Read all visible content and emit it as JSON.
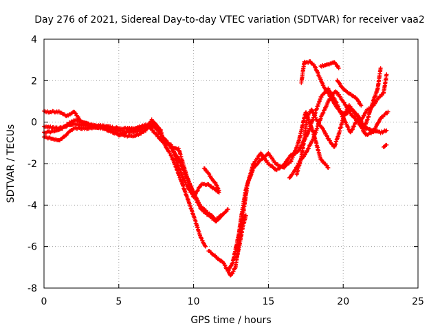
{
  "chart_data": {
    "type": "scatter",
    "title": "Day 276 of 2021, Sidereal Day-to-day VTEC variation (SDTVAR) for receiver vaa2",
    "xlabel": "GPS time / hours",
    "ylabel": "SDTVAR / TECUs",
    "xlim": [
      0,
      25
    ],
    "ylim": [
      -8,
      4
    ],
    "xticks": [
      "0",
      "5",
      "10",
      "15",
      "20",
      "25"
    ],
    "yticks": [
      "-8",
      "-6",
      "-4",
      "-2",
      "0",
      "2",
      "4"
    ],
    "grid": true,
    "marker": "+",
    "marker_color": "#ff0000",
    "series": [
      {
        "points": [
          [
            0.0,
            0.5
          ],
          [
            1.0,
            0.5
          ],
          [
            1.5,
            0.3
          ],
          [
            2.0,
            0.5
          ],
          [
            2.5,
            0.0
          ],
          [
            3.0,
            -0.1
          ],
          [
            4.0,
            -0.2
          ],
          [
            5.0,
            -0.4
          ],
          [
            6.0,
            -0.5
          ],
          [
            6.8,
            -0.3
          ],
          [
            7.3,
            -0.1
          ],
          [
            7.8,
            -0.6
          ],
          [
            8.3,
            -1.0
          ],
          [
            9.0,
            -1.8
          ],
          [
            9.5,
            -2.6
          ],
          [
            10.0,
            -3.4
          ],
          [
            10.5,
            -4.1
          ],
          [
            11.0,
            -4.4
          ],
          [
            11.5,
            -4.7
          ],
          [
            11.8,
            -4.5
          ]
        ]
      },
      {
        "points": [
          [
            0.0,
            -0.5
          ],
          [
            1.0,
            -0.4
          ],
          [
            2.0,
            0.1
          ],
          [
            3.0,
            -0.1
          ],
          [
            4.0,
            -0.3
          ],
          [
            5.0,
            -0.6
          ],
          [
            6.0,
            -0.7
          ],
          [
            6.8,
            -0.4
          ],
          [
            7.2,
            0.1
          ],
          [
            7.6,
            -0.2
          ],
          [
            8.0,
            -0.8
          ],
          [
            8.5,
            -1.2
          ],
          [
            9.0,
            -1.3
          ],
          [
            9.5,
            -2.5
          ],
          [
            10.0,
            -3.5
          ],
          [
            10.5,
            -4.2
          ],
          [
            11.0,
            -4.5
          ],
          [
            11.5,
            -4.8
          ],
          [
            12.0,
            -4.4
          ],
          [
            12.3,
            -4.2
          ]
        ]
      },
      {
        "points": [
          [
            0.0,
            -0.7
          ],
          [
            1.0,
            -0.9
          ],
          [
            1.5,
            -0.6
          ],
          [
            2.0,
            -0.3
          ],
          [
            3.0,
            -0.3
          ],
          [
            4.0,
            -0.2
          ],
          [
            5.0,
            -0.3
          ],
          [
            6.0,
            -0.3
          ],
          [
            7.0,
            -0.1
          ],
          [
            7.8,
            -0.4
          ],
          [
            8.0,
            -1.0
          ],
          [
            8.5,
            -1.6
          ],
          [
            9.0,
            -2.5
          ],
          [
            9.5,
            -3.5
          ],
          [
            10.0,
            -4.5
          ],
          [
            10.5,
            -5.6
          ],
          [
            10.8,
            -6.0
          ]
        ]
      },
      {
        "points": [
          [
            0.0,
            -0.2
          ],
          [
            1.0,
            -0.3
          ],
          [
            2.0,
            -0.1
          ],
          [
            3.0,
            -0.2
          ],
          [
            4.0,
            -0.3
          ],
          [
            5.0,
            -0.6
          ],
          [
            6.0,
            -0.4
          ],
          [
            7.0,
            -0.2
          ],
          [
            7.5,
            -0.6
          ],
          [
            8.0,
            -1.0
          ],
          [
            8.5,
            -1.1
          ],
          [
            9.0,
            -2.2
          ],
          [
            9.5,
            -3.0
          ],
          [
            10.0,
            -3.6
          ],
          [
            10.5,
            -3.0
          ],
          [
            11.0,
            -3.0
          ],
          [
            11.5,
            -3.3
          ],
          [
            11.7,
            -3.4
          ]
        ]
      },
      {
        "points": [
          [
            10.7,
            -2.2
          ],
          [
            11.0,
            -2.5
          ],
          [
            11.5,
            -3.0
          ],
          [
            11.7,
            -3.3
          ]
        ]
      },
      {
        "points": [
          [
            11.0,
            -6.2
          ],
          [
            11.5,
            -6.5
          ],
          [
            12.0,
            -6.8
          ],
          [
            12.5,
            -7.4
          ],
          [
            12.8,
            -7.0
          ],
          [
            13.0,
            -6.0
          ],
          [
            13.3,
            -4.5
          ],
          [
            13.6,
            -3.0
          ],
          [
            14.0,
            -2.2
          ],
          [
            14.5,
            -1.8
          ],
          [
            15.0,
            -1.5
          ],
          [
            15.5,
            -2.0
          ],
          [
            16.0,
            -2.2
          ],
          [
            16.5,
            -1.9
          ],
          [
            17.0,
            -1.0
          ],
          [
            17.5,
            0.5
          ],
          [
            18.0,
            -0.5
          ],
          [
            18.5,
            -1.8
          ],
          [
            19.0,
            -2.2
          ]
        ]
      },
      {
        "points": [
          [
            12.3,
            -7.2
          ],
          [
            12.6,
            -6.8
          ],
          [
            13.0,
            -5.5
          ],
          [
            13.2,
            -4.5
          ],
          [
            13.5,
            -3.2
          ],
          [
            13.8,
            -2.5
          ],
          [
            14.0,
            -2.0
          ],
          [
            14.5,
            -1.5
          ],
          [
            15.0,
            -2.0
          ],
          [
            15.5,
            -2.3
          ],
          [
            16.0,
            -2.1
          ],
          [
            16.5,
            -1.6
          ],
          [
            17.0,
            -1.4
          ],
          [
            17.3,
            -1.0
          ],
          [
            17.6,
            -0.6
          ],
          [
            18.0,
            0.2
          ],
          [
            18.5,
            1.2
          ],
          [
            19.0,
            1.6
          ],
          [
            19.5,
            1.0
          ],
          [
            20.0,
            0.2
          ],
          [
            20.5,
            -0.5
          ],
          [
            21.0,
            0.2
          ],
          [
            21.5,
            -0.3
          ],
          [
            22.0,
            -0.4
          ],
          [
            22.5,
            -0.5
          ],
          [
            22.9,
            -0.4
          ]
        ]
      },
      {
        "points": [
          [
            12.9,
            -6.5
          ],
          [
            13.1,
            -5.8
          ],
          [
            13.3,
            -5.0
          ],
          [
            13.5,
            -4.5
          ]
        ]
      },
      {
        "points": [
          [
            16.4,
            -2.7
          ],
          [
            16.8,
            -2.3
          ],
          [
            17.0,
            -2.0
          ],
          [
            17.5,
            -1.5
          ],
          [
            18.0,
            -0.8
          ],
          [
            18.5,
            0.2
          ],
          [
            19.0,
            1.0
          ],
          [
            19.5,
            1.5
          ],
          [
            20.0,
            1.0
          ],
          [
            20.5,
            0.4
          ],
          [
            21.0,
            0.0
          ],
          [
            21.5,
            -0.6
          ],
          [
            22.0,
            -0.5
          ],
          [
            22.5,
            0.2
          ],
          [
            23.0,
            0.5
          ]
        ]
      },
      {
        "points": [
          [
            16.9,
            -2.5
          ],
          [
            17.2,
            -1.7
          ],
          [
            17.4,
            -0.8
          ],
          [
            17.6,
            0.3
          ],
          [
            17.9,
            0.6
          ],
          [
            18.3,
            0.0
          ],
          [
            18.7,
            -0.4
          ],
          [
            19.0,
            -0.8
          ],
          [
            19.4,
            -1.2
          ],
          [
            19.7,
            -0.6
          ],
          [
            20.0,
            0.2
          ],
          [
            20.4,
            0.8
          ],
          [
            20.8,
            0.4
          ],
          [
            21.2,
            0.1
          ],
          [
            21.6,
            0.6
          ],
          [
            22.0,
            0.8
          ],
          [
            22.4,
            1.2
          ],
          [
            22.7,
            1.4
          ],
          [
            22.9,
            2.3
          ]
        ]
      },
      {
        "points": [
          [
            17.2,
            1.9
          ],
          [
            17.4,
            2.9
          ],
          [
            17.8,
            2.9
          ],
          [
            18.1,
            2.7
          ],
          [
            18.4,
            2.2
          ],
          [
            18.7,
            1.7
          ],
          [
            19.0,
            1.4
          ],
          [
            19.4,
            0.9
          ],
          [
            19.8,
            0.5
          ],
          [
            20.2,
            0.4
          ],
          [
            20.6,
            0.6
          ],
          [
            21.0,
            0.3
          ],
          [
            21.4,
            -0.3
          ],
          [
            21.7,
            0.3
          ],
          [
            22.0,
            1.0
          ],
          [
            22.3,
            1.6
          ],
          [
            22.5,
            2.6
          ]
        ]
      },
      {
        "points": [
          [
            18.5,
            2.7
          ],
          [
            19.0,
            2.8
          ],
          [
            19.4,
            2.9
          ],
          [
            19.7,
            2.6
          ]
        ]
      },
      {
        "points": [
          [
            19.6,
            2.0
          ],
          [
            20.0,
            1.6
          ],
          [
            20.4,
            1.4
          ],
          [
            20.8,
            1.2
          ],
          [
            21.2,
            0.8
          ]
        ]
      },
      {
        "points": [
          [
            22.7,
            -1.2
          ],
          [
            22.9,
            -1.1
          ]
        ]
      }
    ]
  }
}
